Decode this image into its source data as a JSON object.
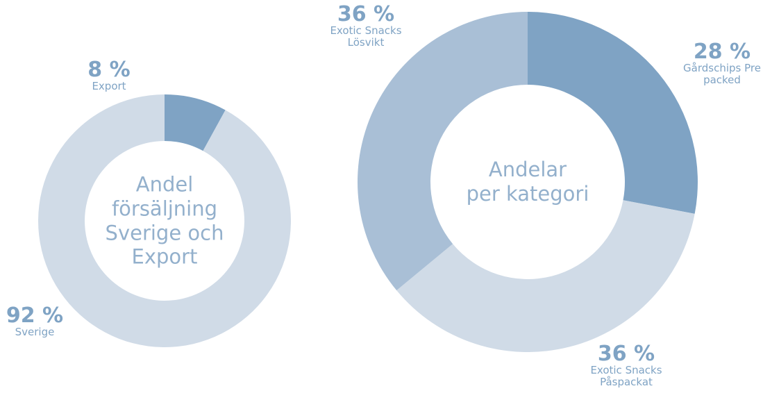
{
  "chart_data": [
    {
      "type": "pie",
      "title": "Andel\nförsäljning\nSverige och\nExport",
      "categories": [
        "Export",
        "Sverige"
      ],
      "values": [
        8,
        92
      ],
      "value_labels": [
        "8 %",
        "92 %"
      ],
      "colors": [
        "#7fa3c4",
        "#d0dbe7"
      ]
    },
    {
      "type": "pie",
      "title": "Andelar\nper kategori",
      "categories": [
        "Gårdschips Pre packed",
        "Exotic Snacks Påspackat",
        "Exotic Snacks Lösvikt"
      ],
      "values": [
        28,
        36,
        36
      ],
      "value_labels": [
        "28 %",
        "36 %",
        "36 %"
      ],
      "colors": [
        "#7fa3c4",
        "#d0dbe7",
        "#a9bfd6"
      ]
    }
  ]
}
